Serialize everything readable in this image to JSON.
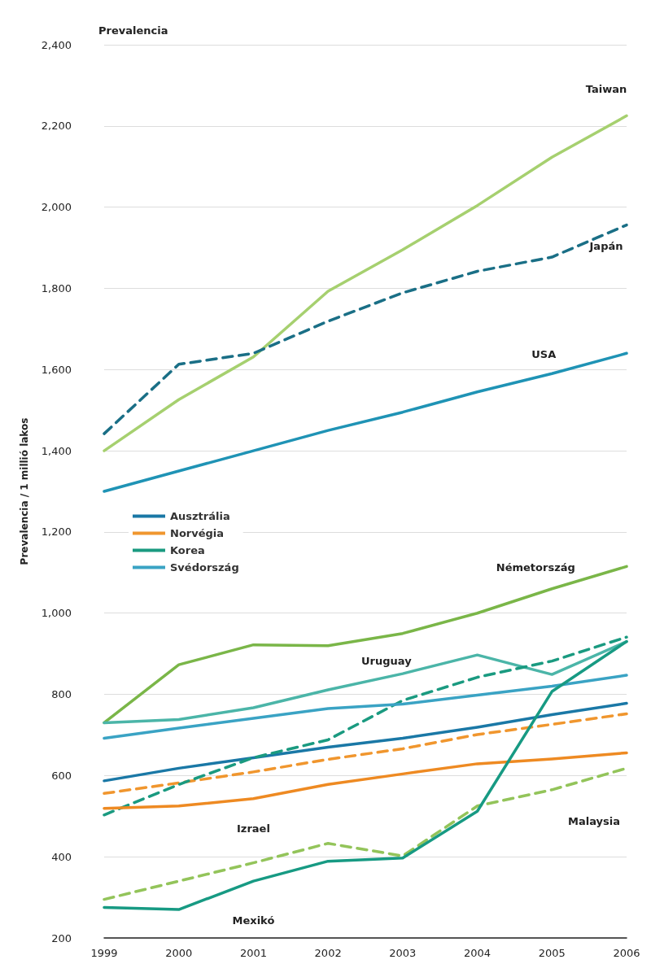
{
  "chart_data": {
    "type": "line",
    "title": "Prevalencia",
    "ylabel": "Prevalencia / 1 millió lakos",
    "categories": [
      "1999",
      "2000",
      "2001",
      "2002",
      "2003",
      "2004",
      "2005",
      "2006"
    ],
    "ylim": [
      200,
      2400
    ],
    "yticks": [
      {
        "value": 200,
        "label": "200"
      },
      {
        "value": 400,
        "label": "400"
      },
      {
        "value": 600,
        "label": "600"
      },
      {
        "value": 800,
        "label": "800"
      },
      {
        "value": 1000,
        "label": "1,000"
      },
      {
        "value": 1200,
        "label": "1,200"
      },
      {
        "value": 1400,
        "label": "1,400"
      },
      {
        "value": 1600,
        "label": "1,600"
      },
      {
        "value": 1800,
        "label": "1,800"
      },
      {
        "value": 2000,
        "label": "2,000"
      },
      {
        "value": 2200,
        "label": "2,200"
      },
      {
        "value": 2400,
        "label": "2,400"
      }
    ],
    "grid": "y",
    "legend": "left",
    "marker": "none",
    "series": [
      {
        "name": "Taiwan",
        "color": "#a6d06f",
        "line_style": "solid",
        "values": [
          1400,
          1526,
          1631,
          1793,
          1895,
          2004,
          2123,
          2225
        ]
      },
      {
        "name": "Japán",
        "color": "#1a6f86",
        "line_style": "dashed",
        "values": [
          1442,
          1613,
          1640,
          1719,
          1789,
          1842,
          1877,
          1956
        ]
      },
      {
        "name": "USA",
        "color": "#1f93b5",
        "line_style": "solid",
        "values": [
          1300,
          1350,
          1400,
          1450,
          1495,
          1545,
          1590,
          1640
        ]
      },
      {
        "name": "Németország",
        "color": "#7ab648",
        "line_style": "solid",
        "values": [
          730,
          873,
          922,
          920,
          950,
          1000,
          1060,
          1115
        ]
      },
      {
        "name": "Uruguay",
        "color": "#4bb5a8",
        "line_style": "solid",
        "values": [
          730,
          738,
          767,
          811,
          851,
          897,
          849,
          930
        ]
      },
      {
        "name": "Ausztrália",
        "color": "#1a78a6",
        "line_style": "solid",
        "values": [
          587,
          618,
          644,
          670,
          692,
          719,
          750,
          778
        ]
      },
      {
        "name": "Norvégia",
        "color": "#f0962e",
        "line_style": "dashed",
        "values": [
          556,
          582,
          609,
          640,
          666,
          701,
          726,
          752
        ]
      },
      {
        "name": "Korea",
        "color": "#1a9a80",
        "line_style": "dashed",
        "values": [
          503,
          578,
          644,
          688,
          785,
          842,
          882,
          941
        ]
      },
      {
        "name": "Svédország",
        "color": "#3aa3c4",
        "line_style": "solid",
        "values": [
          692,
          717,
          741,
          765,
          776,
          798,
          820,
          847
        ]
      },
      {
        "name": "Izrael",
        "color": "#ee8a22",
        "line_style": "solid",
        "values": [
          519,
          525,
          543,
          578,
          604,
          629,
          641,
          656
        ]
      },
      {
        "name": "Malaysia",
        "color": "#93c45a",
        "line_style": "dashed",
        "values": [
          295,
          340,
          385,
          433,
          402,
          525,
          565,
          618
        ]
      },
      {
        "name": "Mexikó",
        "color": "#179a83",
        "line_style": "solid",
        "values": [
          275,
          270,
          340,
          389,
          397,
          512,
          807,
          930
        ]
      }
    ]
  }
}
